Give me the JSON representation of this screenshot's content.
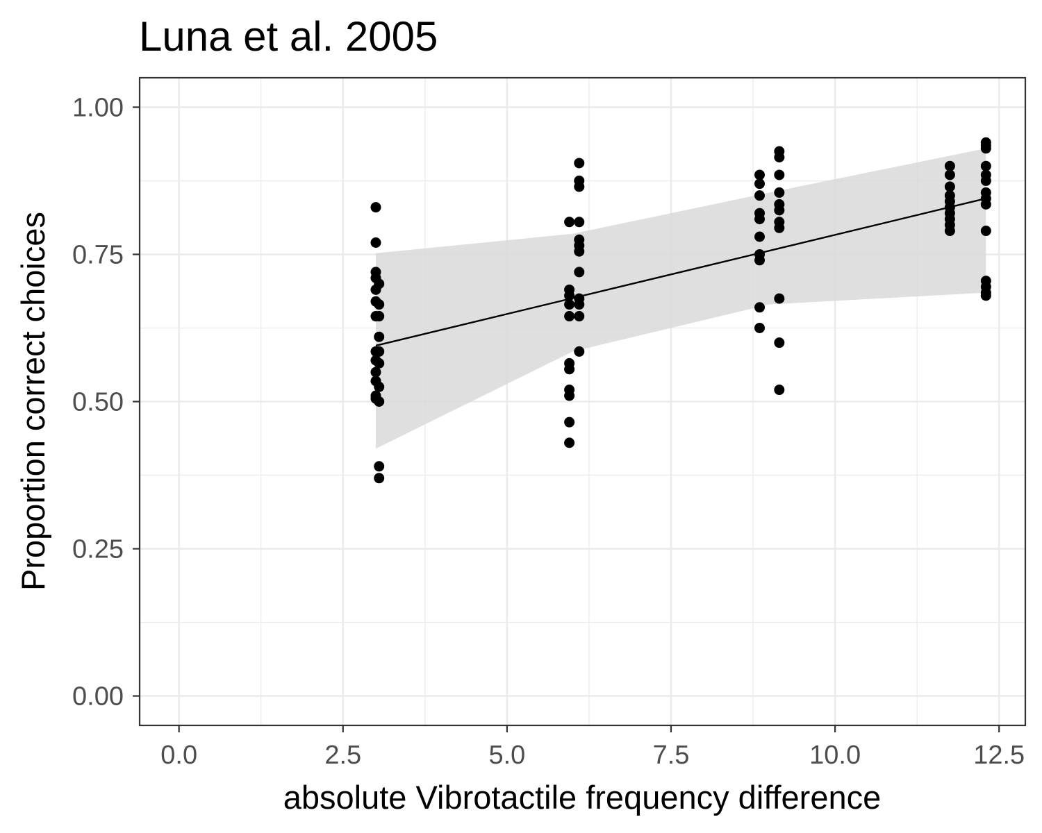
{
  "chart_data": {
    "type": "scatter",
    "title": "Luna et al. 2005",
    "xlabel": "absolute Vibrotactile frequency difference",
    "ylabel": "Proportion correct choices",
    "xlim": [
      -0.6,
      12.9
    ],
    "ylim": [
      -0.05,
      1.05
    ],
    "x_ticks": [
      0.0,
      2.5,
      5.0,
      7.5,
      10.0,
      12.5
    ],
    "x_tick_labels": [
      "0.0",
      "2.5",
      "5.0",
      "7.5",
      "10.0",
      "12.5"
    ],
    "y_ticks": [
      0.0,
      0.25,
      0.5,
      0.75,
      1.0
    ],
    "y_tick_labels": [
      "0.00",
      "0.25",
      "0.50",
      "0.75",
      "1.00"
    ],
    "grid": true,
    "legend": "none",
    "colors": {
      "points": "#000000",
      "fit_line": "#000000",
      "ribbon": "#d9d9d9",
      "panel_border": "#333333",
      "grid": "#ebebeb"
    },
    "series": [
      {
        "values": [
          {
            "x": 3.0,
            "y": 0.83
          },
          {
            "x": 3.0,
            "y": 0.77
          },
          {
            "x": 3.0,
            "y": 0.72
          },
          {
            "x": 3.0,
            "y": 0.71
          },
          {
            "x": 3.0,
            "y": 0.69
          },
          {
            "x": 3.0,
            "y": 0.67
          },
          {
            "x": 3.0,
            "y": 0.645
          },
          {
            "x": 3.0,
            "y": 0.585
          },
          {
            "x": 3.0,
            "y": 0.57
          },
          {
            "x": 3.0,
            "y": 0.55
          },
          {
            "x": 3.0,
            "y": 0.535
          },
          {
            "x": 3.0,
            "y": 0.51
          },
          {
            "x": 3.0,
            "y": 0.505
          },
          {
            "x": 3.05,
            "y": 0.7
          },
          {
            "x": 3.05,
            "y": 0.665
          },
          {
            "x": 3.05,
            "y": 0.645
          },
          {
            "x": 3.05,
            "y": 0.61
          },
          {
            "x": 3.05,
            "y": 0.585
          },
          {
            "x": 3.05,
            "y": 0.565
          },
          {
            "x": 3.05,
            "y": 0.525
          },
          {
            "x": 3.05,
            "y": 0.5
          },
          {
            "x": 3.05,
            "y": 0.39
          },
          {
            "x": 3.05,
            "y": 0.37
          },
          {
            "x": 5.95,
            "y": 0.805
          },
          {
            "x": 5.95,
            "y": 0.69
          },
          {
            "x": 5.95,
            "y": 0.68
          },
          {
            "x": 5.95,
            "y": 0.665
          },
          {
            "x": 5.95,
            "y": 0.645
          },
          {
            "x": 5.95,
            "y": 0.565
          },
          {
            "x": 5.95,
            "y": 0.555
          },
          {
            "x": 5.95,
            "y": 0.52
          },
          {
            "x": 5.95,
            "y": 0.51
          },
          {
            "x": 5.95,
            "y": 0.465
          },
          {
            "x": 5.95,
            "y": 0.43
          },
          {
            "x": 6.1,
            "y": 0.905
          },
          {
            "x": 6.1,
            "y": 0.875
          },
          {
            "x": 6.1,
            "y": 0.865
          },
          {
            "x": 6.1,
            "y": 0.805
          },
          {
            "x": 6.1,
            "y": 0.775
          },
          {
            "x": 6.1,
            "y": 0.765
          },
          {
            "x": 6.1,
            "y": 0.755
          },
          {
            "x": 6.1,
            "y": 0.72
          },
          {
            "x": 6.1,
            "y": 0.675
          },
          {
            "x": 6.1,
            "y": 0.665
          },
          {
            "x": 6.1,
            "y": 0.645
          },
          {
            "x": 6.1,
            "y": 0.585
          },
          {
            "x": 8.85,
            "y": 0.885
          },
          {
            "x": 8.85,
            "y": 0.87
          },
          {
            "x": 8.85,
            "y": 0.85
          },
          {
            "x": 8.85,
            "y": 0.82
          },
          {
            "x": 8.85,
            "y": 0.81
          },
          {
            "x": 8.85,
            "y": 0.78
          },
          {
            "x": 8.85,
            "y": 0.75
          },
          {
            "x": 8.85,
            "y": 0.74
          },
          {
            "x": 8.85,
            "y": 0.66
          },
          {
            "x": 8.85,
            "y": 0.625
          },
          {
            "x": 9.15,
            "y": 0.925
          },
          {
            "x": 9.15,
            "y": 0.915
          },
          {
            "x": 9.15,
            "y": 0.885
          },
          {
            "x": 9.15,
            "y": 0.855
          },
          {
            "x": 9.15,
            "y": 0.835
          },
          {
            "x": 9.15,
            "y": 0.825
          },
          {
            "x": 9.15,
            "y": 0.805
          },
          {
            "x": 9.15,
            "y": 0.795
          },
          {
            "x": 9.15,
            "y": 0.675
          },
          {
            "x": 9.15,
            "y": 0.6
          },
          {
            "x": 9.15,
            "y": 0.52
          },
          {
            "x": 11.75,
            "y": 0.9
          },
          {
            "x": 11.75,
            "y": 0.885
          },
          {
            "x": 11.75,
            "y": 0.865
          },
          {
            "x": 11.75,
            "y": 0.85
          },
          {
            "x": 11.75,
            "y": 0.84
          },
          {
            "x": 11.75,
            "y": 0.83
          },
          {
            "x": 11.75,
            "y": 0.82
          },
          {
            "x": 11.75,
            "y": 0.81
          },
          {
            "x": 11.75,
            "y": 0.8
          },
          {
            "x": 11.75,
            "y": 0.79
          },
          {
            "x": 12.3,
            "y": 0.94
          },
          {
            "x": 12.3,
            "y": 0.935
          },
          {
            "x": 12.3,
            "y": 0.93
          },
          {
            "x": 12.3,
            "y": 0.9
          },
          {
            "x": 12.3,
            "y": 0.885
          },
          {
            "x": 12.3,
            "y": 0.875
          },
          {
            "x": 12.3,
            "y": 0.855
          },
          {
            "x": 12.3,
            "y": 0.845
          },
          {
            "x": 12.3,
            "y": 0.835
          },
          {
            "x": 12.3,
            "y": 0.79
          },
          {
            "x": 12.3,
            "y": 0.705
          },
          {
            "x": 12.3,
            "y": 0.695
          },
          {
            "x": 12.3,
            "y": 0.685
          },
          {
            "x": 12.3,
            "y": 0.68
          }
        ]
      }
    ],
    "fit_line": {
      "x": [
        3.0,
        12.3
      ],
      "y": [
        0.595,
        0.845
      ]
    },
    "confidence_band": {
      "x": [
        3.0,
        6.0,
        9.0,
        12.3
      ],
      "lower": [
        0.42,
        0.585,
        0.665,
        0.685
      ],
      "upper": [
        0.752,
        0.785,
        0.855,
        0.93
      ]
    }
  }
}
